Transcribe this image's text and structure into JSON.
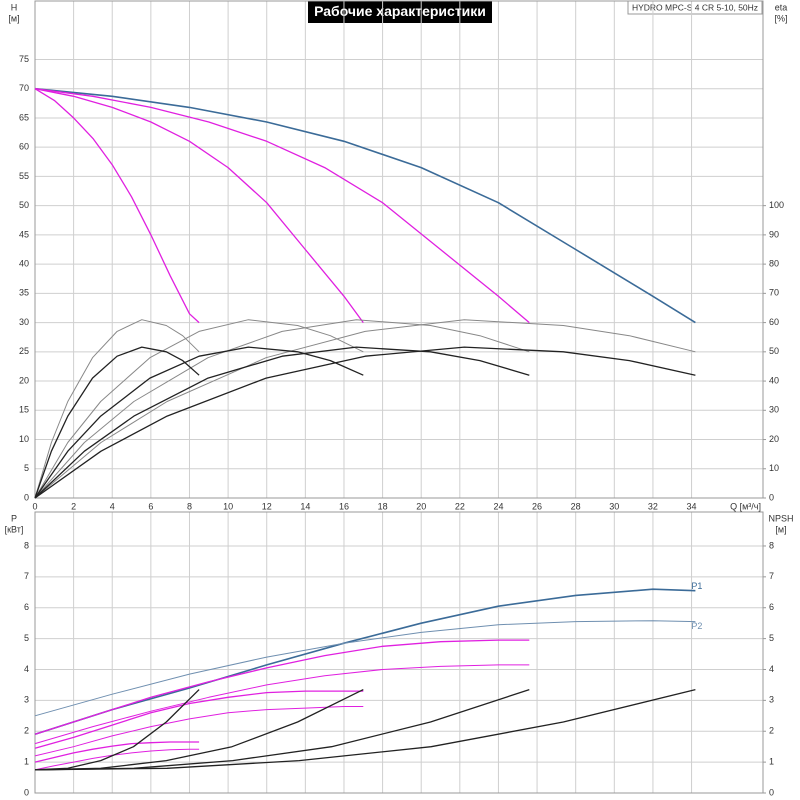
{
  "chart_data": [
    {
      "type": "line",
      "title": "Рабочие характеристики",
      "subtitle": "HYDRO MPC-S 4 CR 5-10, 50Hz",
      "ylabel": "H",
      "yunit": "[м]",
      "y2label": "eta",
      "y2unit": "[%]",
      "xlabel": "Q [м³/ч]",
      "xlim": [
        0,
        37.7
      ],
      "xticks": [
        0,
        2,
        4,
        6,
        8,
        10,
        12,
        14,
        16,
        18,
        20,
        22,
        24,
        26,
        28,
        30,
        32,
        34
      ],
      "xtick_labels": true,
      "ylim": [
        0,
        85
      ],
      "yticks": [
        0,
        5,
        10,
        15,
        20,
        25,
        30,
        35,
        40,
        45,
        50,
        55,
        60,
        65,
        70,
        75
      ],
      "y2lim": [
        0,
        170
      ],
      "y2ticks": [
        0,
        10,
        20,
        30,
        40,
        50,
        60,
        70,
        80,
        90,
        100
      ],
      "grid": true,
      "series": [
        {
          "color": "#3b6b98",
          "line_width": 1.6,
          "x": [
            0,
            4,
            8,
            12,
            16,
            20,
            24,
            28,
            32,
            34.2
          ],
          "values": [
            70,
            68.7,
            66.8,
            64.3,
            61,
            56.5,
            50.5,
            42.5,
            34.5,
            30
          ]
        },
        {
          "color": "#e020e0",
          "line_width": 1.3,
          "x": [
            0,
            3,
            6,
            9,
            12,
            15,
            18,
            21,
            24,
            25.6
          ],
          "values": [
            70,
            68.7,
            66.8,
            64.3,
            61,
            56.5,
            50.5,
            42.5,
            34.5,
            30
          ]
        },
        {
          "color": "#e020e0",
          "line_width": 1.3,
          "x": [
            0,
            2,
            4,
            6,
            8,
            10,
            12,
            14,
            16,
            17
          ],
          "values": [
            70,
            68.7,
            66.8,
            64.3,
            61,
            56.5,
            50.5,
            42.5,
            34.5,
            30
          ]
        },
        {
          "color": "#e020e0",
          "line_width": 1.3,
          "x": [
            0,
            1,
            2,
            3,
            4,
            5,
            6,
            7,
            8,
            8.5
          ],
          "values": [
            70,
            68,
            65,
            61.5,
            57,
            51.5,
            45,
            38,
            31.5,
            30
          ]
        },
        {
          "color": "#888888",
          "line_width": 1,
          "axis": "y2",
          "x": [
            0,
            0.85,
            1.7,
            2.98,
            4.25,
            5.53,
            6.8,
            7.65,
            8.5
          ],
          "values": [
            0,
            19,
            33,
            48,
            57,
            61,
            59,
            55.5,
            50
          ]
        },
        {
          "color": "#888888",
          "line_width": 1,
          "axis": "y2",
          "x": [
            0,
            1.7,
            3.4,
            5.95,
            8.5,
            11.05,
            13.6,
            15.3,
            17
          ],
          "values": [
            0,
            19,
            33,
            48,
            57,
            61,
            59,
            55.5,
            50
          ]
        },
        {
          "color": "#888888",
          "line_width": 1,
          "axis": "y2",
          "x": [
            0,
            2.56,
            5.12,
            8.96,
            12.8,
            16.64,
            20.48,
            23.04,
            25.6
          ],
          "values": [
            0,
            19,
            33,
            48,
            57,
            61,
            59,
            55.5,
            50
          ]
        },
        {
          "color": "#888888",
          "line_width": 1,
          "axis": "y2",
          "x": [
            0,
            3.42,
            6.84,
            11.97,
            17.1,
            22.23,
            27.36,
            30.78,
            34.2
          ],
          "values": [
            0,
            19,
            33,
            48,
            57,
            61,
            59,
            55.5,
            50
          ]
        },
        {
          "color": "#222222",
          "line_width": 1.3,
          "axis": "y2",
          "x": [
            0,
            0.85,
            1.7,
            2.98,
            4.25,
            5.53,
            6.8,
            7.65,
            8.5
          ],
          "values": [
            0,
            16,
            28,
            41,
            48.5,
            51.6,
            50,
            47,
            42
          ]
        },
        {
          "color": "#222222",
          "line_width": 1.3,
          "axis": "y2",
          "x": [
            0,
            1.7,
            3.4,
            5.95,
            8.5,
            11.05,
            13.6,
            15.3,
            17
          ],
          "values": [
            0,
            16,
            28,
            41,
            48.5,
            51.6,
            50,
            47,
            42
          ]
        },
        {
          "color": "#222222",
          "line_width": 1.3,
          "axis": "y2",
          "x": [
            0,
            2.56,
            5.12,
            8.96,
            12.8,
            16.64,
            20.48,
            23.04,
            25.6
          ],
          "values": [
            0,
            16,
            28,
            41,
            48.5,
            51.6,
            50,
            47,
            42
          ]
        },
        {
          "color": "#222222",
          "line_width": 1.3,
          "axis": "y2",
          "x": [
            0,
            3.42,
            6.84,
            11.97,
            17.1,
            22.23,
            27.36,
            30.78,
            34.2
          ],
          "values": [
            0,
            16,
            28,
            41,
            48.5,
            51.6,
            50,
            47,
            42
          ]
        }
      ]
    },
    {
      "type": "line",
      "ylabel": "P",
      "yunit": "[кВт]",
      "y2label": "NPSH",
      "y2unit": "[м]",
      "xlim": [
        0,
        37.7
      ],
      "xticks": [
        0,
        2,
        4,
        6,
        8,
        10,
        12,
        14,
        16,
        18,
        20,
        22,
        24,
        26,
        28,
        30,
        32,
        34
      ],
      "xtick_labels": false,
      "ylim": [
        0,
        9.1
      ],
      "yticks": [
        0,
        1,
        2,
        3,
        4,
        5,
        6,
        7,
        8
      ],
      "y2lim": [
        0,
        9.1
      ],
      "y2ticks": [
        0,
        1,
        2,
        3,
        4,
        5,
        6,
        7,
        8
      ],
      "grid": true,
      "series": [
        {
          "name": "P1",
          "color": "#3b6b98",
          "line_width": 1.6,
          "x": [
            0,
            4,
            8,
            12,
            16,
            20,
            24,
            28,
            32,
            34.2
          ],
          "values": [
            1.9,
            2.7,
            3.4,
            4.15,
            4.85,
            5.5,
            6.05,
            6.4,
            6.6,
            6.55
          ]
        },
        {
          "name": "P2",
          "color": "#6f8fb0",
          "line_width": 1,
          "x": [
            0,
            4,
            8,
            12,
            16,
            20,
            24,
            28,
            32,
            34.2
          ],
          "values": [
            2.5,
            3.2,
            3.85,
            4.4,
            4.85,
            5.2,
            5.45,
            5.55,
            5.58,
            5.55
          ]
        },
        {
          "color": "#e020e0",
          "line_width": 1.3,
          "x": [
            0,
            3,
            6,
            9,
            12,
            15,
            18,
            21,
            24,
            25.6
          ],
          "values": [
            1.9,
            2.5,
            3.1,
            3.6,
            4.05,
            4.45,
            4.75,
            4.9,
            4.95,
            4.95
          ]
        },
        {
          "color": "#e020e0",
          "line_width": 1,
          "x": [
            0,
            3,
            6,
            9,
            12,
            15,
            18,
            21,
            24,
            25.6
          ],
          "values": [
            1.6,
            2.15,
            2.65,
            3.1,
            3.5,
            3.8,
            4,
            4.1,
            4.15,
            4.15
          ]
        },
        {
          "color": "#e020e0",
          "line_width": 1.3,
          "x": [
            0,
            2,
            4,
            6,
            8,
            10,
            12,
            14,
            16,
            17
          ],
          "values": [
            1.45,
            1.8,
            2.2,
            2.6,
            2.9,
            3.1,
            3.25,
            3.3,
            3.3,
            3.3
          ]
        },
        {
          "color": "#e020e0",
          "line_width": 1,
          "x": [
            0,
            2,
            4,
            6,
            8,
            10,
            12,
            14,
            16,
            17
          ],
          "values": [
            1.2,
            1.5,
            1.85,
            2.15,
            2.4,
            2.6,
            2.7,
            2.75,
            2.8,
            2.8
          ]
        },
        {
          "color": "#e020e0",
          "line_width": 1.3,
          "x": [
            0,
            1,
            2,
            3,
            4,
            5,
            6,
            7,
            8,
            8.5
          ],
          "values": [
            1,
            1.15,
            1.3,
            1.42,
            1.52,
            1.6,
            1.63,
            1.65,
            1.65,
            1.65
          ]
        },
        {
          "color": "#e020e0",
          "line_width": 1,
          "x": [
            0,
            1,
            2,
            3,
            4,
            5,
            6,
            7,
            8,
            8.5
          ],
          "values": [
            0.75,
            0.88,
            1,
            1.12,
            1.22,
            1.3,
            1.36,
            1.4,
            1.42,
            1.42
          ]
        },
        {
          "color": "#222222",
          "line_width": 1.3,
          "axis": "y2",
          "x": [
            0,
            1.7,
            3.4,
            5.1,
            6.8,
            8.5
          ],
          "values": [
            0.75,
            0.8,
            1.05,
            1.5,
            2.3,
            3.35
          ]
        },
        {
          "color": "#222222",
          "line_width": 1.3,
          "axis": "y2",
          "x": [
            0,
            3.4,
            6.8,
            10.2,
            13.6,
            17
          ],
          "values": [
            0.75,
            0.8,
            1.05,
            1.5,
            2.3,
            3.35
          ]
        },
        {
          "color": "#222222",
          "line_width": 1.3,
          "axis": "y2",
          "x": [
            0,
            5.12,
            10.24,
            15.36,
            20.48,
            25.6
          ],
          "values": [
            0.75,
            0.8,
            1.05,
            1.5,
            2.3,
            3.35
          ]
        },
        {
          "color": "#222222",
          "line_width": 1.3,
          "axis": "y2",
          "x": [
            0,
            6.84,
            13.68,
            20.52,
            27.36,
            34.2
          ],
          "values": [
            0.75,
            0.8,
            1.05,
            1.5,
            2.3,
            3.35
          ]
        }
      ]
    }
  ]
}
